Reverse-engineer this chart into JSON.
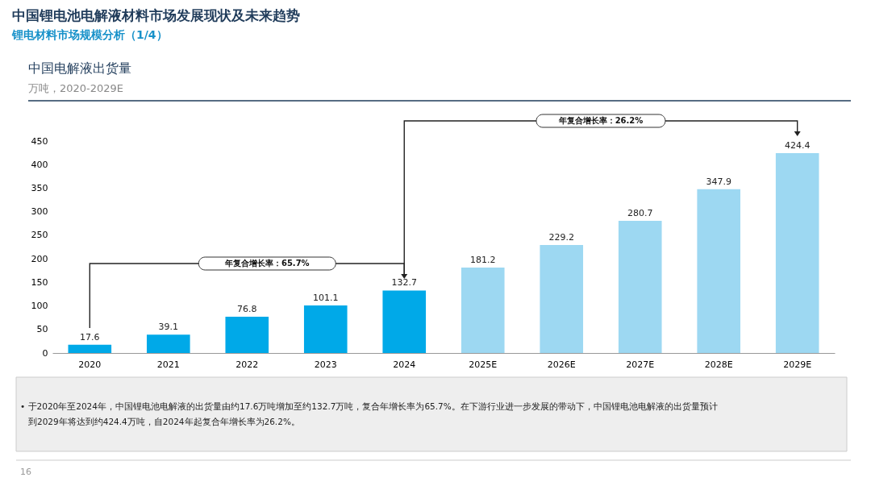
{
  "chart_data": {
    "type": "bar",
    "title": "中国电解液出货量",
    "subtitle": "万吨，2020-2029E",
    "categories": [
      "2020",
      "2021",
      "2022",
      "2023",
      "2024",
      "2025E",
      "2026E",
      "2027E",
      "2028E",
      "2029E"
    ],
    "values": [
      17.6,
      39.1,
      76.8,
      101.1,
      132.7,
      181.2,
      229.2,
      280.7,
      347.9,
      424.4
    ],
    "colors": [
      "#00a9e8",
      "#00a9e8",
      "#00a9e8",
      "#00a9e8",
      "#00a9e8",
      "#9dd8f2",
      "#9dd8f2",
      "#9dd8f2",
      "#9dd8f2",
      "#9dd8f2"
    ],
    "ylim": [
      0,
      450
    ],
    "yticks": [
      0,
      50,
      100,
      150,
      200,
      250,
      300,
      350,
      400,
      450
    ],
    "grid": false,
    "data_labels": true,
    "annotations": [
      "中国锂电池电解液材料市场发展现状及未来趋势",
      "锂电材料市场规模分析（1/4）",
      "年复合增长率：65.7%",
      "年复合增长率：26.2%",
      "•  于2020年至2024年，中国锂电池电解液的出货量由约17.6万吨增加至约132.7万吨，复合年增长率为65.7%。在下游行业进一步发展的带动下，中国锂电池电解液的出货量预计",
      "到2029年将达到约424.4万吨，自2024年起复合年增长率为26.2%。",
      "16"
    ]
  }
}
